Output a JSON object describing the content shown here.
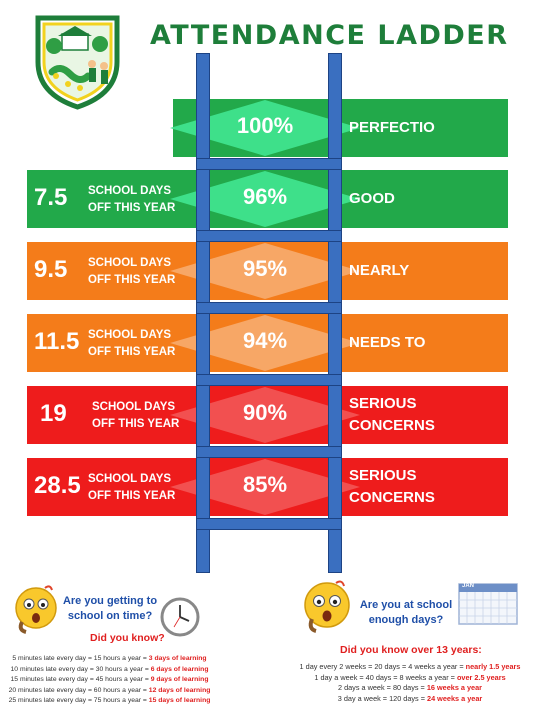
{
  "title": "ATTENDANCE LADDER",
  "rows": [
    {
      "days": "",
      "days_text": "",
      "pct": "100%",
      "label": "PERFECTIO",
      "color": "#22a94a",
      "diamond": "#3ee08a"
    },
    {
      "days": "7.5",
      "days_text": "SCHOOL DAYS OFF THIS YEAR",
      "pct": "96%",
      "label": "GOOD",
      "color": "#22a94a",
      "diamond": "#3ee08a"
    },
    {
      "days": "9.5",
      "days_text": "SCHOOL DAYS OFF THIS YEAR",
      "pct": "95%",
      "label": "NEARLY",
      "color": "#f47c1a",
      "diamond": "#f7a766"
    },
    {
      "days": "11.5",
      "days_text": "SCHOOL DAYS OFF THIS YEAR",
      "pct": "94%",
      "label": "NEEDS TO",
      "color": "#f47c1a",
      "diamond": "#f7a766"
    },
    {
      "days": "19",
      "days_text": "SCHOOL DAYS OFF THIS YEAR",
      "pct": "90%",
      "label": "SERIOUS CONCERNS",
      "color": "#ee1c1c",
      "diamond": "#f25050"
    },
    {
      "days": "28.5",
      "days_text": "SCHOOL DAYS OFF THIS YEAR",
      "pct": "85%",
      "label": "SERIOUS CONCERNS",
      "color": "#ee1c1c",
      "diamond": "#f25050"
    }
  ],
  "left_box": {
    "question": "Are you getting to school on time?",
    "did_you_know": "Did you know?",
    "lines": [
      {
        "text": "5 minutes late every day = 15 hours a year = ",
        "highlight": "3 days of learning"
      },
      {
        "text": "10 minutes late every day = 30 hours a year = ",
        "highlight": "6 days of learning"
      },
      {
        "text": "15 minutes late every day = 45 hours a year = ",
        "highlight": "9 days of learning"
      },
      {
        "text": "20 minutes late every day = 60 hours a year = ",
        "highlight": "12 days of learning"
      },
      {
        "text": "25 minutes late every day = 75 hours a year = ",
        "highlight": "15 days of learning"
      }
    ]
  },
  "right_box": {
    "question": "Are you at school enough days?",
    "did_you_know": "Did you know over 13 years:",
    "calendar_label": "JAN",
    "lines": [
      {
        "text": "1 day every 2 weeks = 20 days = 4 weeks a year = ",
        "highlight": "nearly 1.5 years"
      },
      {
        "text": "1 day a week = 40 days = 8 weeks a year = ",
        "highlight": "over 2.5 years"
      },
      {
        "text": "2 days a week = 80 days = ",
        "highlight": "16 weeks a year"
      },
      {
        "text": "3 day a week = 120 days = ",
        "highlight": "24 weeks a year"
      }
    ]
  }
}
